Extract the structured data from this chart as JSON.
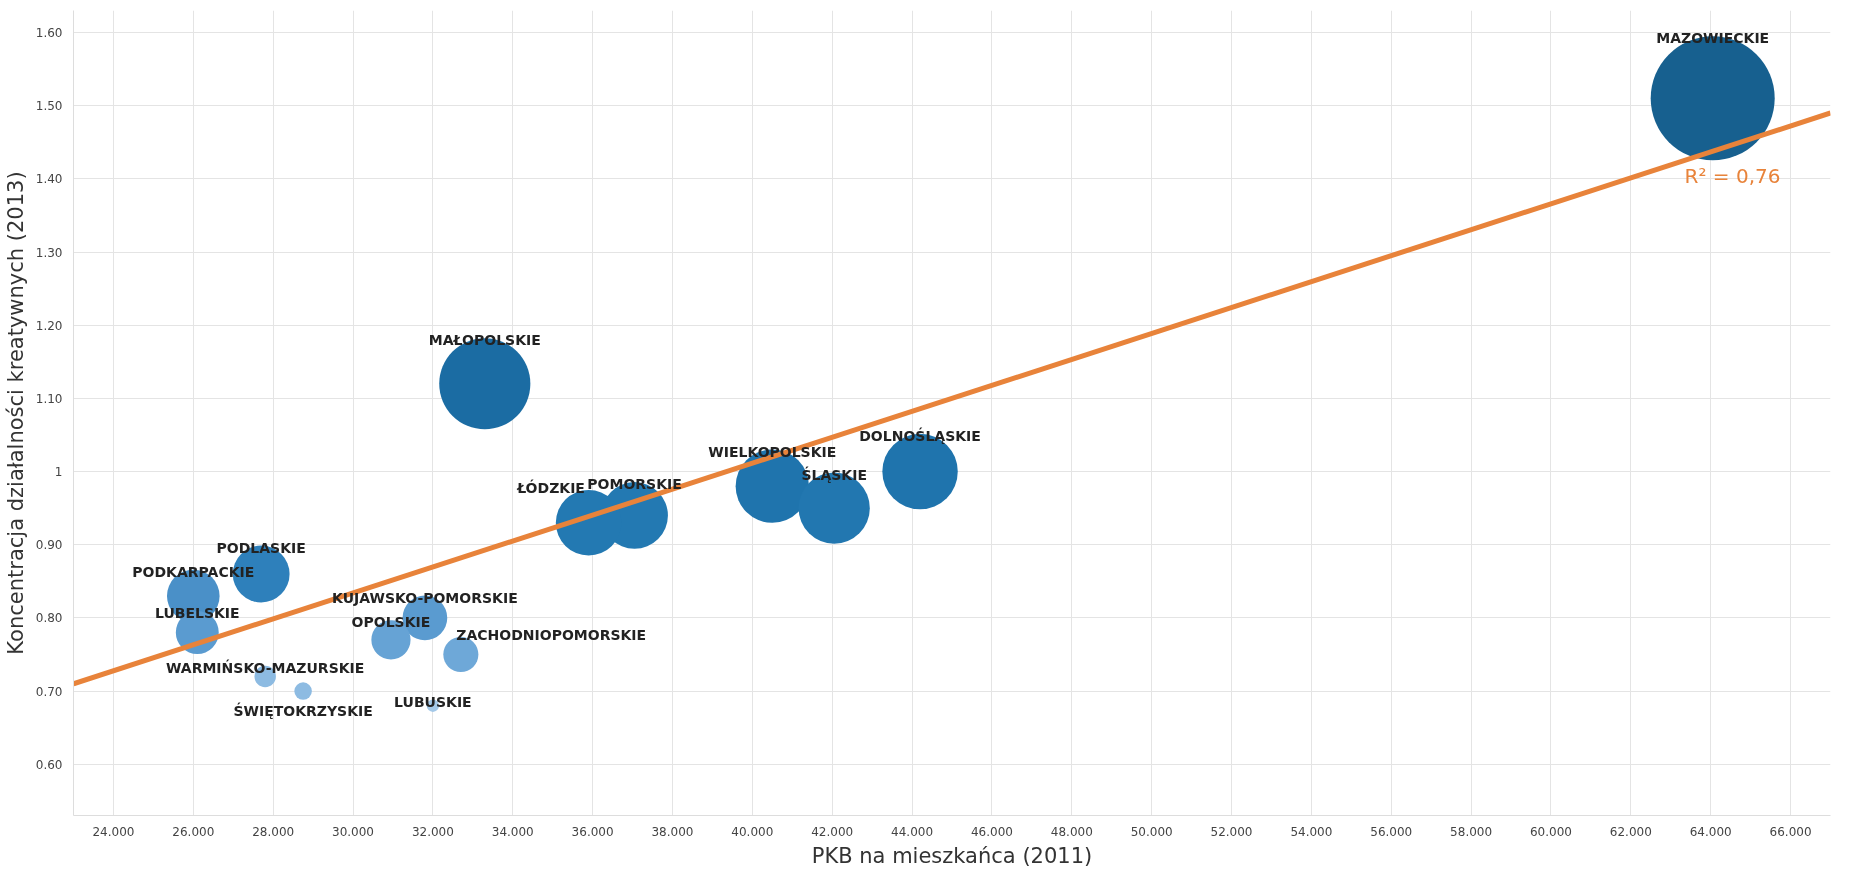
{
  "chart_data": {
    "type": "bubble",
    "xlabel": "PKB na mieszkańca (2011)",
    "ylabel": "Koncentracja działalności kreatywnych (2013)",
    "xlim": [
      23,
      67
    ],
    "ylim": [
      0.53,
      1.63
    ],
    "xticks": [
      {
        "value": 24,
        "label": "24.000"
      },
      {
        "value": 26,
        "label": "26.000"
      },
      {
        "value": 28,
        "label": "28.000"
      },
      {
        "value": 30,
        "label": "30.000"
      },
      {
        "value": 32,
        "label": "32.000"
      },
      {
        "value": 34,
        "label": "34.000"
      },
      {
        "value": 36,
        "label": "36.000"
      },
      {
        "value": 38,
        "label": "38.000"
      },
      {
        "value": 40,
        "label": "40.000"
      },
      {
        "value": 42,
        "label": "42.000"
      },
      {
        "value": 44,
        "label": "44.000"
      },
      {
        "value": 46,
        "label": "46.000"
      },
      {
        "value": 48,
        "label": "48.000"
      },
      {
        "value": 50,
        "label": "50.000"
      },
      {
        "value": 52,
        "label": "52.000"
      },
      {
        "value": 54,
        "label": "54.000"
      },
      {
        "value": 56,
        "label": "56.000"
      },
      {
        "value": 58,
        "label": "58.000"
      },
      {
        "value": 60,
        "label": "60.000"
      },
      {
        "value": 62,
        "label": "62.000"
      },
      {
        "value": 64,
        "label": "64.000"
      },
      {
        "value": 66,
        "label": "66.000"
      }
    ],
    "yticks": [
      {
        "value": 0.6,
        "label": "0.60"
      },
      {
        "value": 0.7,
        "label": "0.70"
      },
      {
        "value": 0.8,
        "label": "0.80"
      },
      {
        "value": 0.9,
        "label": "0.90"
      },
      1,
      {
        "value": 1.1,
        "label": "1.10"
      },
      {
        "value": 1.2,
        "label": "1.20"
      },
      {
        "value": 1.3,
        "label": "1.30"
      },
      {
        "value": 1.4,
        "label": "1.40"
      },
      {
        "value": 1.5,
        "label": "1.50"
      },
      {
        "value": 1.6,
        "label": "1.60"
      }
    ],
    "grid": true,
    "series": [
      {
        "name": "MAZOWIECKIE",
        "color": "#17608f",
        "x": [
          64.05
        ],
        "values": [
          1.51
        ],
        "sizes": [
          1
        ]
      },
      {
        "name": "MAŁOPOLSKIE",
        "color": "#1b6ca3",
        "x": [
          33.3
        ],
        "values": [
          1.12
        ],
        "sizes": [
          0.54
        ]
      },
      {
        "name": "DOLNOŚLĄSKIE",
        "color": "#1f74ad",
        "x": [
          44.2
        ],
        "values": [
          1.0
        ],
        "sizes": [
          0.37
        ]
      },
      {
        "name": "WIELKOPOLSKIE",
        "color": "#1f74ad",
        "x": [
          40.5
        ],
        "values": [
          0.98
        ],
        "sizes": [
          0.35
        ]
      },
      {
        "name": "ŚLĄSKIE",
        "color": "#2277b0",
        "x": [
          42.05
        ],
        "values": [
          0.95
        ],
        "sizes": [
          0.33
        ]
      },
      {
        "name": "POMORSKIE",
        "color": "#2379b2",
        "x": [
          37.05
        ],
        "values": [
          0.94
        ],
        "sizes": [
          0.29
        ]
      },
      {
        "name": "ŁÓDZKIE",
        "color": "#2379b2",
        "x": [
          35.9
        ],
        "values": [
          0.93
        ],
        "sizes": [
          0.28
        ]
      },
      {
        "name": "PODLASKIE",
        "color": "#2e80bb",
        "x": [
          27.7
        ],
        "values": [
          0.86
        ],
        "sizes": [
          0.21
        ]
      },
      {
        "name": "PODKARPACKIE",
        "color": "#4a90c8",
        "x": [
          26.0
        ],
        "values": [
          0.83
        ],
        "sizes": [
          0.18
        ]
      },
      {
        "name": "KUJAWSKO-POMORSKIE",
        "color": "#5a9bd0",
        "x": [
          31.8
        ],
        "values": [
          0.8
        ],
        "sizes": [
          0.13
        ]
      },
      {
        "name": "LUBELSKIE",
        "color": "#5a9bd0",
        "x": [
          26.1
        ],
        "values": [
          0.78
        ],
        "sizes": [
          0.12
        ]
      },
      {
        "name": "OPOLSKIE",
        "color": "#66a3d5",
        "x": [
          30.95
        ],
        "values": [
          0.77
        ],
        "sizes": [
          0.1
        ]
      },
      {
        "name": "ZACHODNIOPOMORSKIE",
        "color": "#6ea8d8",
        "x": [
          32.7
        ],
        "values": [
          0.75
        ],
        "sizes": [
          0.08
        ]
      },
      {
        "name": "WARMIŃSKO-MAZURSKIE",
        "color": "#8dbbe2",
        "x": [
          27.8
        ],
        "values": [
          0.72
        ],
        "sizes": [
          0.03
        ]
      },
      {
        "name": "ŚWIĘTOKRZYSKIE",
        "color": "#8dbbe2",
        "x": [
          28.75
        ],
        "values": [
          0.7
        ],
        "sizes": [
          0.02
        ]
      },
      {
        "name": "LUBUSKIE",
        "color": "#a3c8e8",
        "x": [
          32.0
        ],
        "values": [
          0.68
        ],
        "sizes": [
          0.01
        ]
      },
      {
        "type": "line",
        "color": "#e8833a",
        "x": [
          23,
          67
        ],
        "values": [
          0.71,
          1.49
        ]
      }
    ],
    "annotations": [
      "R² = 0,76"
    ]
  }
}
